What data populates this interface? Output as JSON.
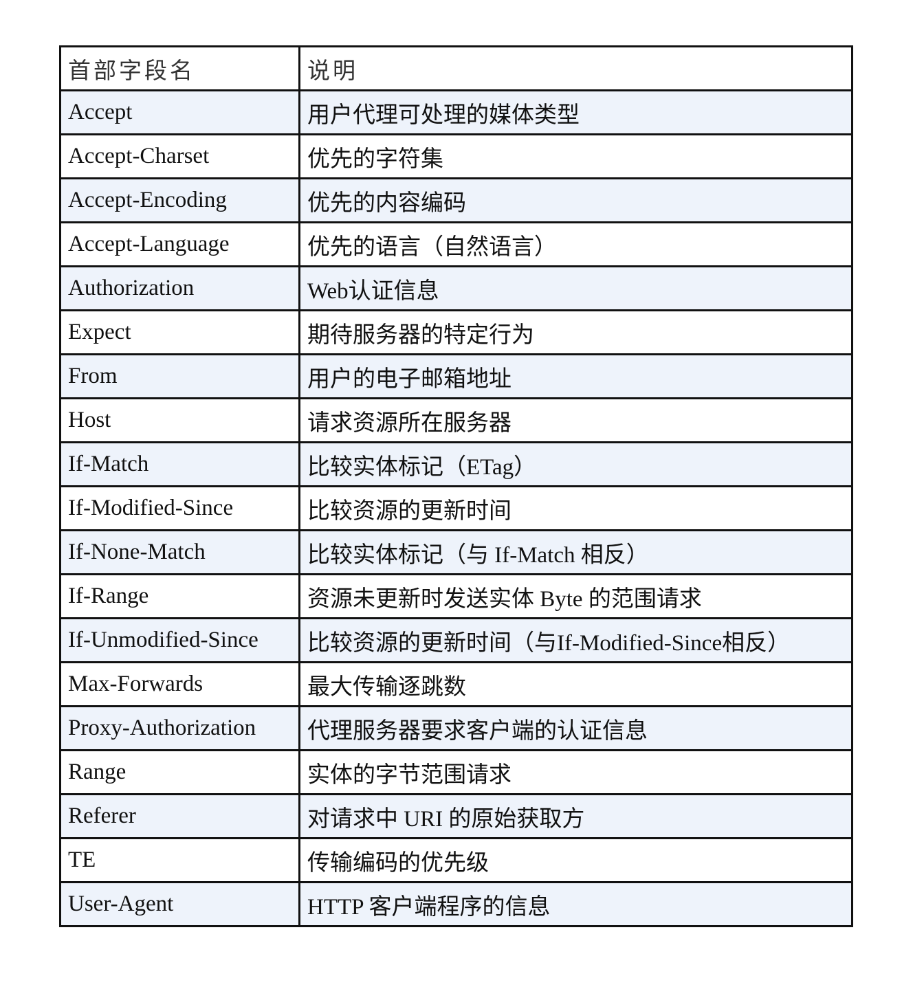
{
  "colors": {
    "row_shade": "#eef3fb",
    "border": "#111111"
  },
  "header": {
    "name": "首部字段名",
    "desc": "说明"
  },
  "rows": [
    {
      "name": "Accept",
      "desc": "用户代理可处理的媒体类型"
    },
    {
      "name": "Accept-Charset",
      "desc": "优先的字符集"
    },
    {
      "name": "Accept-Encoding",
      "desc": "优先的内容编码"
    },
    {
      "name": "Accept-Language",
      "desc": "优先的语言（自然语言）"
    },
    {
      "name": "Authorization",
      "desc": "Web认证信息"
    },
    {
      "name": "Expect",
      "desc": "期待服务器的特定行为"
    },
    {
      "name": "From",
      "desc": "用户的电子邮箱地址"
    },
    {
      "name": "Host",
      "desc": "请求资源所在服务器"
    },
    {
      "name": "If-Match",
      "desc": "比较实体标记（ETag）"
    },
    {
      "name": "If-Modified-Since",
      "desc": "比较资源的更新时间"
    },
    {
      "name": "If-None-Match",
      "desc": "比较实体标记（与 If-Match 相反）"
    },
    {
      "name": "If-Range",
      "desc": "资源未更新时发送实体 Byte 的范围请求"
    },
    {
      "name": "If-Unmodified-Since",
      "desc": "比较资源的更新时间（与If-Modified-Since相反）"
    },
    {
      "name": "Max-Forwards",
      "desc": "最大传输逐跳数"
    },
    {
      "name": "Proxy-Authorization",
      "desc": "代理服务器要求客户端的认证信息"
    },
    {
      "name": "Range",
      "desc": "实体的字节范围请求"
    },
    {
      "name": "Referer",
      "desc": "对请求中 URI 的原始获取方"
    },
    {
      "name": "TE",
      "desc": "传输编码的优先级"
    },
    {
      "name": "User-Agent",
      "desc": "HTTP 客户端程序的信息"
    }
  ]
}
